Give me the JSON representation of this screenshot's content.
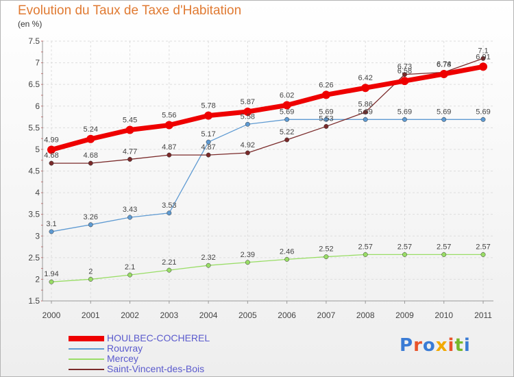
{
  "header": {
    "title": "Evolution du Taux de Taxe d'Habitation",
    "subtitle": "(en %)"
  },
  "logo": {
    "text": "Proxiti",
    "colors": [
      "#3a7bd5",
      "#e8542b",
      "#3a7bd5",
      "#f2a900",
      "#e8542b",
      "#76b82a",
      "#3a7bd5"
    ]
  },
  "chart_data": {
    "type": "line",
    "title": "Evolution du Taux de Taxe d'Habitation",
    "subtitle": "(en %)",
    "xlabel": "",
    "ylabel": "",
    "x": [
      "2000",
      "2001",
      "2002",
      "2003",
      "2004",
      "2005",
      "2006",
      "2007",
      "2008",
      "2009",
      "2010",
      "2011"
    ],
    "ylim": [
      1.5,
      7.5
    ],
    "yticks": [
      "1.5",
      "2",
      "2.5",
      "3",
      "3.5",
      "4",
      "4.5",
      "5",
      "5.5",
      "6",
      "6.5",
      "7",
      "7.5"
    ],
    "grid": true,
    "legend_position": "bottom-left",
    "series": [
      {
        "name": "HOULBEC-COCHEREL",
        "color": "#ee0000",
        "values": [
          4.99,
          5.24,
          5.45,
          5.56,
          5.78,
          5.87,
          6.02,
          6.26,
          6.42,
          6.58,
          6.74,
          6.91
        ],
        "labels": [
          "4.99",
          "5.24",
          "5.45",
          "5.56",
          "5.78",
          "5.87",
          "6.02",
          "6.26",
          "6.42",
          "6.58",
          "6.74",
          "6.91"
        ]
      },
      {
        "name": "Rouvray",
        "color": "#5e9ad2",
        "values": [
          3.1,
          3.26,
          3.43,
          3.53,
          5.17,
          5.58,
          5.69,
          5.69,
          5.69,
          5.69,
          5.69,
          5.69
        ],
        "labels": [
          "3.1",
          "3.26",
          "3.43",
          "3.53",
          "5.17",
          "5.58",
          "5.69",
          "5.69",
          "5.69",
          "5.69",
          "5.69",
          "5.69"
        ]
      },
      {
        "name": "Mercey",
        "color": "#99dd66",
        "values": [
          1.94,
          2,
          2.1,
          2.21,
          2.32,
          2.39,
          2.46,
          2.52,
          2.57,
          2.57,
          2.57,
          2.57
        ],
        "labels": [
          "1.94",
          "2",
          "2.1",
          "2.21",
          "2.32",
          "2.39",
          "2.46",
          "2.52",
          "2.57",
          "2.57",
          "2.57",
          "2.57"
        ]
      },
      {
        "name": "Saint-Vincent-des-Bois",
        "color": "#7a2a2a",
        "values": [
          4.68,
          4.68,
          4.77,
          4.87,
          4.87,
          4.92,
          5.22,
          5.53,
          5.86,
          6.73,
          6.78,
          7.1
        ],
        "labels": [
          "4.68",
          "4.68",
          "4.77",
          "4.87",
          "4.87",
          "4.92",
          "5.22",
          "5.53",
          "5.86",
          "6.73",
          "6.78",
          "7.1"
        ]
      }
    ]
  }
}
